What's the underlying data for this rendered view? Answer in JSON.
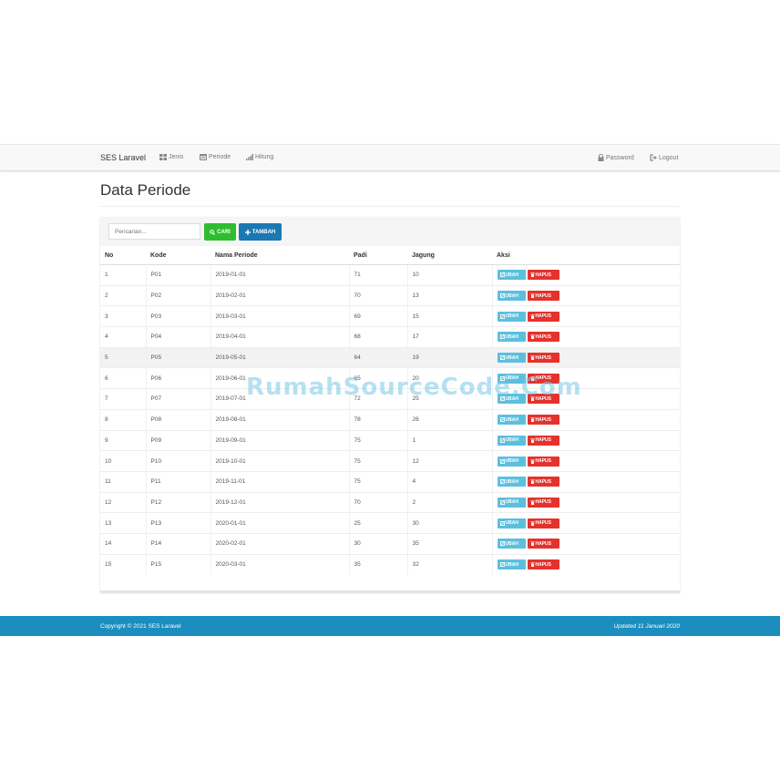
{
  "navbar": {
    "brand": "SES Laravel",
    "links": [
      {
        "label": "Jenis",
        "icon": "grid-icon"
      },
      {
        "label": "Periode",
        "icon": "calendar-icon"
      },
      {
        "label": "Hitung",
        "icon": "bar-chart-icon"
      }
    ],
    "right_links": [
      {
        "label": "Password",
        "icon": "lock-icon"
      },
      {
        "label": "Logout",
        "icon": "logout-icon"
      }
    ]
  },
  "page": {
    "title": "Data Periode"
  },
  "toolbar": {
    "search_placeholder": "Pencarian...",
    "search_label": "CARI",
    "add_label": "TAMBAH"
  },
  "table": {
    "headers": [
      "No",
      "Kode",
      "Nama Periode",
      "Padi",
      "Jagung",
      "Aksi"
    ],
    "edit_label": "UBAH",
    "delete_label": "HAPUS",
    "rows": [
      [
        "1",
        "P01",
        "2019-01-01",
        "71",
        "10"
      ],
      [
        "2",
        "P02",
        "2019-02-01",
        "70",
        "13"
      ],
      [
        "3",
        "P03",
        "2019-03-01",
        "69",
        "15"
      ],
      [
        "4",
        "P04",
        "2019-04-01",
        "68",
        "17"
      ],
      [
        "5",
        "P05",
        "2019-05-01",
        "64",
        "19"
      ],
      [
        "6",
        "P06",
        "2019-06-01",
        "65",
        "20"
      ],
      [
        "7",
        "P07",
        "2019-07-01",
        "72",
        "25"
      ],
      [
        "8",
        "P08",
        "2019-08-01",
        "78",
        "26"
      ],
      [
        "9",
        "P09",
        "2019-09-01",
        "75",
        "1"
      ],
      [
        "10",
        "P10",
        "2019-10-01",
        "75",
        "12"
      ],
      [
        "11",
        "P11",
        "2019-11-01",
        "75",
        "4"
      ],
      [
        "12",
        "P12",
        "2019-12-01",
        "70",
        "2"
      ],
      [
        "13",
        "P13",
        "2020-01-01",
        "25",
        "30"
      ],
      [
        "14",
        "P14",
        "2020-02-01",
        "30",
        "35"
      ],
      [
        "15",
        "P15",
        "2020-03-01",
        "35",
        "32"
      ]
    ]
  },
  "footer": {
    "copyright": "Copyright © 2021 SES Laravel",
    "updated": "Updated 11 Januari 2020"
  },
  "watermark": "RumahSourceCode.Com",
  "colors": {
    "footer": "#1b8dbf",
    "search_button": "#2ebd2e",
    "add_button": "#1b78b3",
    "edit_button": "#5bc0de",
    "delete_button": "#e5322d"
  }
}
